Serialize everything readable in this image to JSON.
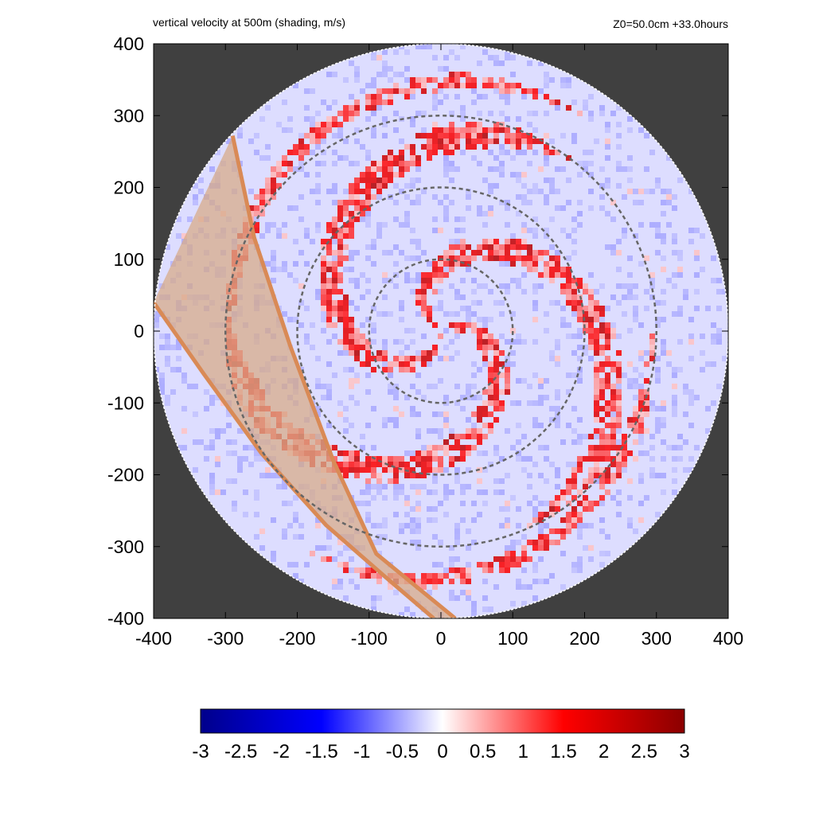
{
  "chart_data": {
    "type": "heatmap",
    "title": "vertical velocity at 500m (shading, m/s)",
    "subtitle": "Z0=50.0cm  +33.0hours",
    "xlabel": "",
    "ylabel": "",
    "xlim": [
      -400,
      400
    ],
    "ylim": [
      -400,
      400
    ],
    "x_ticks": [
      -400,
      -300,
      -200,
      -100,
      0,
      100,
      200,
      300,
      400
    ],
    "y_ticks": [
      400,
      300,
      200,
      100,
      0,
      -100,
      -200,
      -300,
      -400
    ],
    "domain_radius": 400,
    "reference_circles": [
      100,
      200,
      300
    ],
    "colorbar": {
      "range": [
        -3,
        3
      ],
      "ticks": [
        "-3",
        "-2.5",
        "-2",
        "-1.5",
        "-1",
        "-0.5",
        "0",
        "0.5",
        "1",
        "1.5",
        "2",
        "2.5",
        "3"
      ],
      "colors": [
        "#00008b",
        "#0000ff",
        "#ffffff",
        "#ff0000",
        "#8b0000"
      ]
    },
    "band": {
      "outer_edge": [
        [
          -290,
          272
        ],
        [
          -260,
          130
        ],
        [
          -210,
          -20
        ],
        [
          -150,
          -180
        ],
        [
          -90,
          -310
        ],
        [
          20,
          -400
        ]
      ],
      "inner_edge": [
        [
          -400,
          40
        ],
        [
          -330,
          -60
        ],
        [
          -250,
          -170
        ],
        [
          -160,
          -270
        ],
        [
          -80,
          -340
        ],
        [
          -10,
          -400
        ]
      ]
    },
    "colors": {
      "background": "#404040",
      "circle_line": "#666666",
      "band_fill": "#d7ab8a",
      "band_line": "#d98a56"
    }
  }
}
